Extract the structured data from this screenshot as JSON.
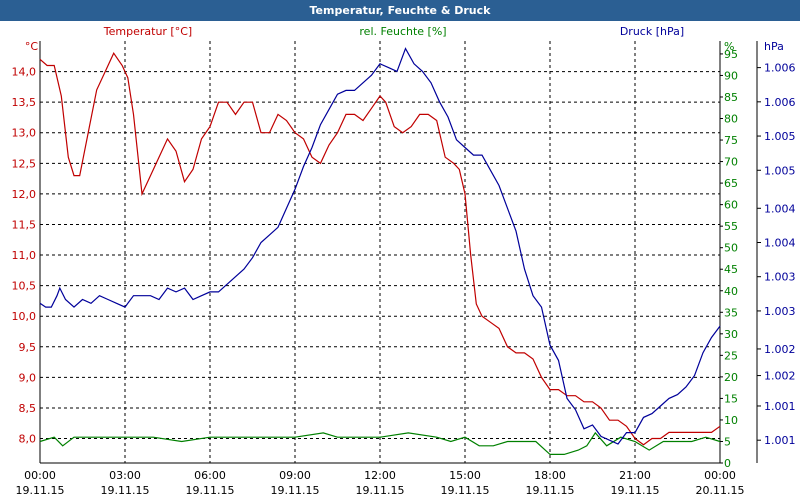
{
  "window": {
    "title": "Temperatur, Feuchte & Druck"
  },
  "colors": {
    "temperature": "#c00000",
    "humidity": "#008000",
    "pressure": "#00009a",
    "titlebar": "#2b5f93"
  },
  "chart_data": {
    "type": "line",
    "title": "Temperatur, Feuchte & Druck",
    "x_tick_labels": [
      {
        "time": "00:00",
        "date": "19.11.15"
      },
      {
        "time": "03:00",
        "date": "19.11.15"
      },
      {
        "time": "06:00",
        "date": "19.11.15"
      },
      {
        "time": "09:00",
        "date": "19.11.15"
      },
      {
        "time": "12:00",
        "date": "19.11.15"
      },
      {
        "time": "15:00",
        "date": "19.11.15"
      },
      {
        "time": "18:00",
        "date": "19.11.15"
      },
      {
        "time": "21:00",
        "date": "19.11.15"
      },
      {
        "time": "00:00",
        "date": "20.11.15"
      }
    ],
    "xlim_hours": [
      0,
      24
    ],
    "axes": {
      "temperature": {
        "label": "Temperatur [°C]",
        "unit": "°C",
        "ylim": [
          7.6,
          14.5
        ],
        "ticks": [
          "8,0",
          "8,5",
          "9,0",
          "9,5",
          "10,0",
          "10,5",
          "11,0",
          "11,5",
          "12,0",
          "12,5",
          "13,0",
          "13,5",
          "14,0"
        ]
      },
      "humidity": {
        "label": "rel. Feuchte [%]",
        "unit": "%",
        "ylim": [
          0,
          98
        ],
        "ticks": [
          "0",
          "5",
          "10",
          "15",
          "20",
          "25",
          "30",
          "35",
          "40",
          "45",
          "50",
          "55",
          "60",
          "65",
          "70",
          "75",
          "80",
          "85",
          "90",
          "95"
        ]
      },
      "pressure": {
        "label": "Druck [hPa]",
        "unit": "hPa",
        "ylim": [
          1000.85,
          1006.4
        ],
        "ticks": [
          "1.001",
          "1.001",
          "1.002",
          "1.002",
          "1.003",
          "1.003",
          "1.004",
          "1.004",
          "1.005",
          "1.005",
          "1.006",
          "1.006"
        ]
      }
    },
    "series": [
      {
        "name": "Temperatur [°C]",
        "axis": "temperature",
        "x": [
          0,
          0.25,
          0.5,
          0.75,
          1.0,
          1.2,
          1.4,
          1.7,
          2.0,
          2.3,
          2.6,
          2.9,
          3.1,
          3.3,
          3.6,
          3.9,
          4.2,
          4.5,
          4.8,
          5.1,
          5.4,
          5.7,
          6.0,
          6.3,
          6.6,
          6.9,
          7.2,
          7.5,
          7.8,
          8.1,
          8.4,
          8.7,
          9.0,
          9.3,
          9.6,
          9.9,
          10.2,
          10.5,
          10.8,
          11.1,
          11.4,
          11.7,
          12.0,
          12.2,
          12.5,
          12.8,
          13.1,
          13.4,
          13.7,
          14.0,
          14.3,
          14.6,
          14.8,
          15.0,
          15.2,
          15.4,
          15.6,
          15.9,
          16.2,
          16.5,
          16.8,
          17.1,
          17.4,
          17.7,
          18.0,
          18.3,
          18.6,
          18.9,
          19.2,
          19.5,
          19.8,
          20.1,
          20.4,
          20.7,
          21.0,
          21.3,
          21.6,
          21.9,
          22.2,
          22.5,
          22.8,
          23.1,
          23.4,
          23.7,
          24.0
        ],
        "values": [
          14.2,
          14.1,
          14.1,
          13.6,
          12.6,
          12.3,
          12.3,
          13.0,
          13.7,
          14.0,
          14.3,
          14.1,
          13.9,
          13.3,
          12.0,
          12.3,
          12.6,
          12.9,
          12.7,
          12.2,
          12.4,
          12.9,
          13.1,
          13.5,
          13.5,
          13.3,
          13.5,
          13.5,
          13.0,
          13.0,
          13.3,
          13.2,
          13.0,
          12.9,
          12.6,
          12.5,
          12.8,
          13.0,
          13.3,
          13.3,
          13.2,
          13.4,
          13.6,
          13.5,
          13.1,
          13.0,
          13.1,
          13.3,
          13.3,
          13.2,
          12.6,
          12.5,
          12.4,
          12.0,
          11.0,
          10.2,
          10.0,
          9.9,
          9.8,
          9.5,
          9.4,
          9.4,
          9.3,
          9.0,
          8.8,
          8.8,
          8.7,
          8.7,
          8.6,
          8.6,
          8.5,
          8.3,
          8.3,
          8.2,
          8.0,
          7.9,
          8.0,
          8.0,
          8.1,
          8.1,
          8.1,
          8.1,
          8.1,
          8.1,
          8.2
        ]
      },
      {
        "name": "rel. Feuchte [%]",
        "axis": "humidity",
        "x": [
          0,
          0.5,
          0.8,
          1.2,
          2,
          3,
          4,
          5,
          6,
          7,
          8,
          9,
          10,
          10.5,
          11,
          12,
          13,
          14,
          14.5,
          15,
          15.5,
          16,
          16.5,
          17,
          17.5,
          18,
          18.5,
          19,
          19.3,
          19.6,
          20,
          20.5,
          21,
          21.5,
          22,
          22.5,
          23,
          23.5,
          24
        ],
        "values": [
          5,
          6,
          4,
          6,
          6,
          6,
          6,
          5,
          6,
          6,
          6,
          6,
          7,
          6,
          6,
          6,
          7,
          6,
          5,
          6,
          4,
          4,
          5,
          5,
          5,
          2,
          2,
          3,
          4,
          7,
          4,
          6,
          5,
          3,
          5,
          5,
          5,
          6,
          5
        ]
      },
      {
        "name": "Druck [hPa]",
        "axis": "pressure",
        "x": [
          0,
          0.2,
          0.4,
          0.6,
          0.7,
          0.9,
          1.2,
          1.5,
          1.8,
          2.1,
          2.4,
          2.7,
          3.0,
          3.3,
          3.6,
          3.9,
          4.2,
          4.5,
          4.8,
          5.1,
          5.4,
          5.7,
          6.0,
          6.3,
          6.6,
          6.9,
          7.2,
          7.5,
          7.8,
          8.1,
          8.4,
          8.7,
          9.0,
          9.3,
          9.6,
          9.9,
          10.2,
          10.5,
          10.8,
          11.1,
          11.4,
          11.7,
          12.0,
          12.3,
          12.6,
          12.9,
          13.2,
          13.5,
          13.8,
          14.1,
          14.4,
          14.7,
          15.0,
          15.3,
          15.6,
          15.9,
          16.2,
          16.5,
          16.8,
          17.1,
          17.4,
          17.7,
          18.0,
          18.3,
          18.6,
          18.9,
          19.2,
          19.5,
          19.8,
          20.1,
          20.4,
          20.7,
          21.0,
          21.3,
          21.6,
          21.9,
          22.2,
          22.5,
          22.8,
          23.1,
          23.4,
          23.7,
          24.0
        ],
        "values": [
          1002.95,
          1002.9,
          1002.9,
          1003.05,
          1003.15,
          1003.0,
          1002.9,
          1003.0,
          1002.95,
          1003.05,
          1003.0,
          1002.95,
          1002.9,
          1003.05,
          1003.05,
          1003.05,
          1003.0,
          1003.15,
          1003.1,
          1003.15,
          1003.0,
          1003.05,
          1003.1,
          1003.1,
          1003.2,
          1003.3,
          1003.4,
          1003.55,
          1003.75,
          1003.85,
          1003.95,
          1004.2,
          1004.45,
          1004.75,
          1005.0,
          1005.3,
          1005.5,
          1005.7,
          1005.75,
          1005.75,
          1005.85,
          1005.95,
          1006.1,
          1006.05,
          1006.0,
          1006.3,
          1006.1,
          1006.0,
          1005.85,
          1005.6,
          1005.4,
          1005.1,
          1005.0,
          1004.9,
          1004.9,
          1004.7,
          1004.5,
          1004.2,
          1003.9,
          1003.4,
          1003.05,
          1002.9,
          1002.4,
          1002.2,
          1001.7,
          1001.55,
          1001.3,
          1001.35,
          1001.2,
          1001.15,
          1001.1,
          1001.25,
          1001.25,
          1001.45,
          1001.5,
          1001.6,
          1001.7,
          1001.75,
          1001.85,
          1002.0,
          1002.3,
          1002.5,
          1002.65
        ]
      }
    ]
  }
}
